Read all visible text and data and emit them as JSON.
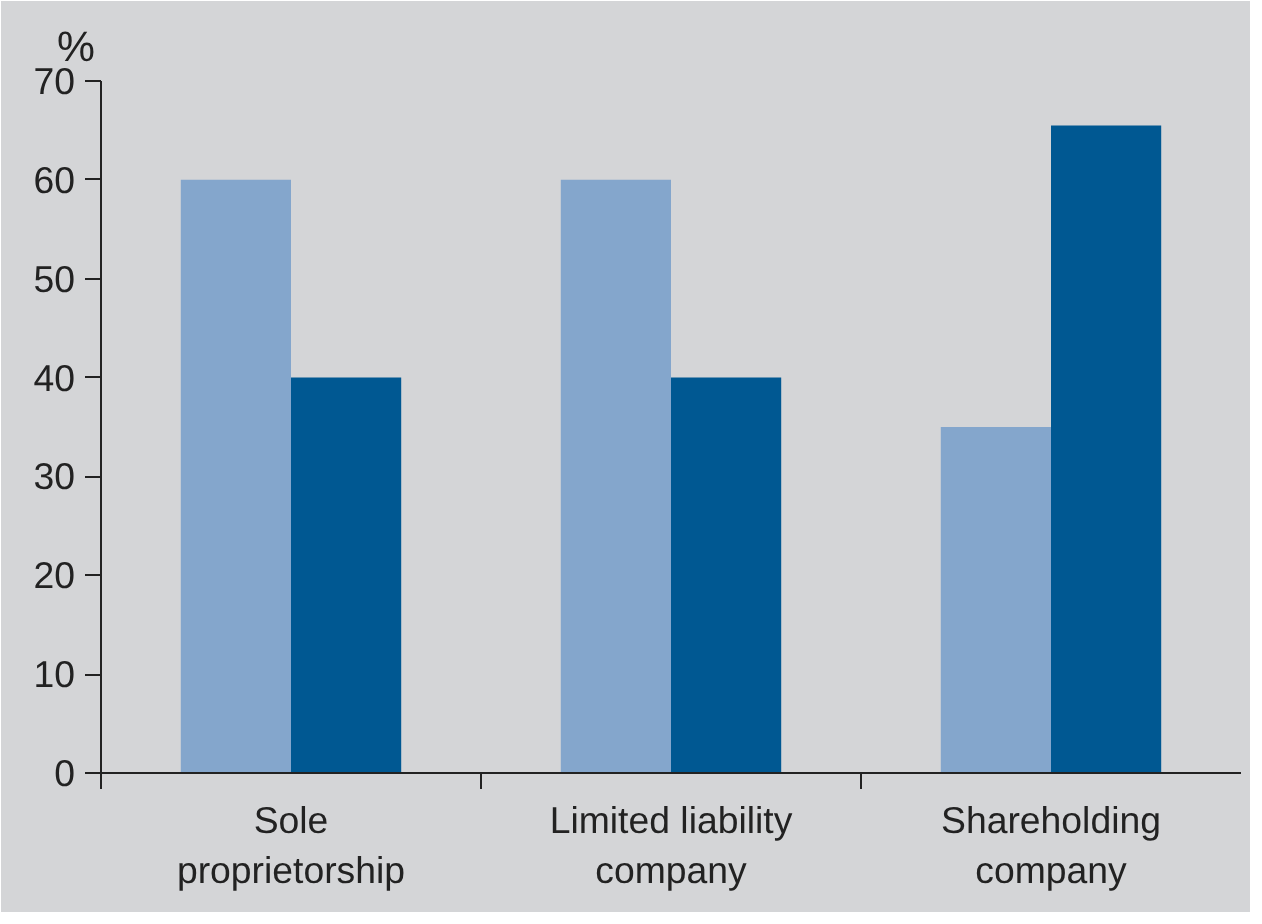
{
  "chart_data": {
    "type": "bar",
    "ylabel": "%",
    "categories": [
      "Sole\nproprietorship",
      "Limited liability\ncompany",
      "Shareholding\ncompany"
    ],
    "series": [
      {
        "color": "#84a6cc",
        "values": [
          60,
          60,
          35
        ]
      },
      {
        "color": "#005892",
        "values": [
          40,
          40,
          65.5
        ]
      }
    ],
    "ylim": [
      0,
      70
    ],
    "yticks": [
      0,
      10,
      20,
      30,
      40,
      50,
      60,
      70
    ],
    "grid": false
  }
}
